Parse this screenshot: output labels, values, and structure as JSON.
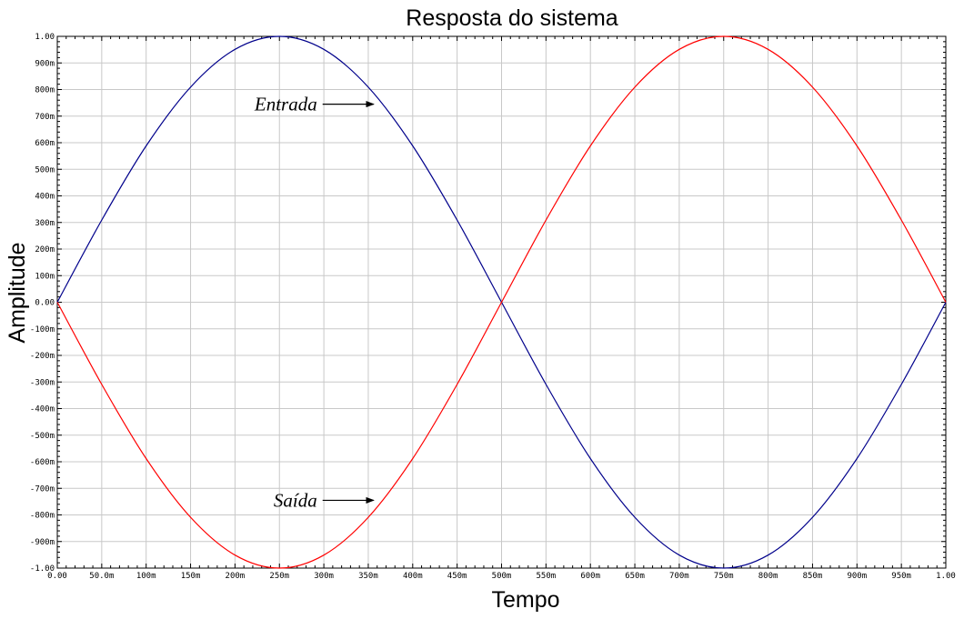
{
  "chart_data": {
    "type": "line",
    "title": "Resposta do sistema",
    "xlabel": "Tempo",
    "ylabel": "Amplitude",
    "xlim": [
      0,
      1
    ],
    "ylim": [
      -1,
      1
    ],
    "grid": true,
    "x_ticks": [
      "0.00",
      "50.0m",
      "100m",
      "150m",
      "200m",
      "250m",
      "300m",
      "350m",
      "400m",
      "450m",
      "500m",
      "550m",
      "600m",
      "650m",
      "700m",
      "750m",
      "800m",
      "850m",
      "900m",
      "950m",
      "1.00"
    ],
    "y_ticks": [
      "1.00",
      "900m",
      "800m",
      "700m",
      "600m",
      "500m",
      "400m",
      "300m",
      "200m",
      "100m",
      "0.00",
      "-100m",
      "-200m",
      "-300m",
      "-400m",
      "-500m",
      "-600m",
      "-700m",
      "-800m",
      "-900m",
      "-1.00"
    ],
    "x": [
      0.0,
      0.05,
      0.1,
      0.15,
      0.2,
      0.25,
      0.3,
      0.35,
      0.4,
      0.45,
      0.5,
      0.55,
      0.6,
      0.65,
      0.7,
      0.75,
      0.8,
      0.85,
      0.9,
      0.95,
      1.0
    ],
    "series": [
      {
        "color": "#00008b",
        "values": [
          0.0,
          0.309,
          0.588,
          0.809,
          0.951,
          1.0,
          0.951,
          0.809,
          0.588,
          0.309,
          0.0,
          -0.309,
          -0.588,
          -0.809,
          -0.951,
          -1.0,
          -0.951,
          -0.809,
          -0.588,
          -0.309,
          0.0
        ]
      },
      {
        "color": "#ff0000",
        "values": [
          0.0,
          -0.309,
          -0.588,
          -0.809,
          -0.951,
          -1.0,
          -0.951,
          -0.809,
          -0.588,
          -0.309,
          0.0,
          0.309,
          0.588,
          0.809,
          0.951,
          1.0,
          0.951,
          0.809,
          0.588,
          0.309,
          0.0
        ]
      }
    ],
    "annotations": [
      {
        "text": "Entrada",
        "x": 0.36,
        "y": 0.745
      },
      {
        "text": "Saída",
        "x": 0.36,
        "y": -0.745
      }
    ]
  }
}
